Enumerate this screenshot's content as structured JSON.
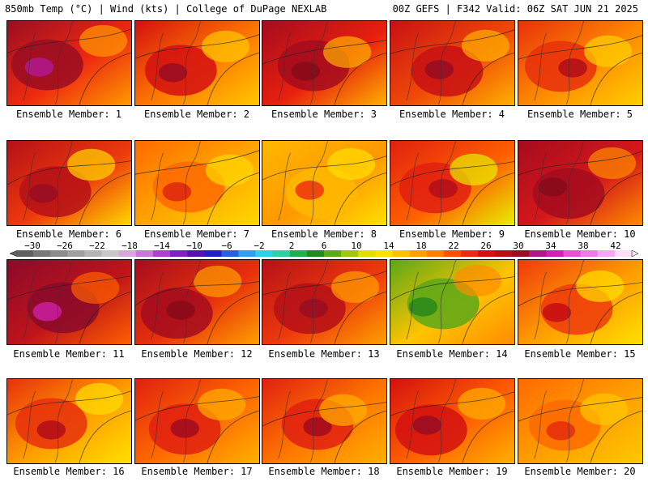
{
  "header": {
    "left": "850mb Temp (°C) | Wind (kts) | College of DuPage NEXLAB",
    "right": "00Z GEFS | F342 Valid: 06Z SAT JUN 21 2025"
  },
  "members": [
    {
      "label": "Ensemble Member: 1",
      "base": "#ee2a10",
      "blob": "#9a0d22",
      "core": "#b0188a",
      "accent": "#ff9a00"
    },
    {
      "label": "Ensemble Member: 2",
      "base": "#ff7a00",
      "blob": "#d41010",
      "core": "#9a0d22",
      "accent": "#ffc800"
    },
    {
      "label": "Ensemble Member: 3",
      "base": "#e8200e",
      "blob": "#a50c1e",
      "core": "#8a0a1a",
      "accent": "#ffb000"
    },
    {
      "label": "Ensemble Member: 4",
      "base": "#f04a08",
      "blob": "#c81014",
      "core": "#9a0d22",
      "accent": "#ffb000"
    },
    {
      "label": "Ensemble Member: 5",
      "base": "#ff8c00",
      "blob": "#e8300c",
      "core": "#b51018",
      "accent": "#ffd000"
    },
    {
      "label": "Ensemble Member: 6",
      "base": "#ee3a0c",
      "blob": "#b51018",
      "core": "#9a0d22",
      "accent": "#ffd800"
    },
    {
      "label": "Ensemble Member: 7",
      "base": "#ffa800",
      "blob": "#ff6a00",
      "core": "#e02a10",
      "accent": "#ffd800"
    },
    {
      "label": "Ensemble Member: 8",
      "base": "#ff9800",
      "blob": "#ffb800",
      "core": "#ee3a0c",
      "accent": "#ffe000"
    },
    {
      "label": "Ensemble Member: 9",
      "base": "#ff6000",
      "blob": "#e02010",
      "core": "#b51018",
      "accent": "#e6f000"
    },
    {
      "label": "Ensemble Member: 10",
      "base": "#d4181a",
      "blob": "#a50c1e",
      "core": "#8a0a1a",
      "accent": "#ff8c00"
    },
    {
      "label": "Ensemble Member: 11",
      "base": "#c0141a",
      "blob": "#8a0a2a",
      "core": "#c81c9a",
      "accent": "#ff6000"
    },
    {
      "label": "Ensemble Member: 12",
      "base": "#e8300c",
      "blob": "#a50c1e",
      "core": "#8a0a1a",
      "accent": "#ffa000"
    },
    {
      "label": "Ensemble Member: 13",
      "base": "#ee3a0c",
      "blob": "#b51018",
      "core": "#9a0d22",
      "accent": "#ffa000"
    },
    {
      "label": "Ensemble Member: 14",
      "base": "#ffc400",
      "blob": "#5aa818",
      "core": "#2e8a1c",
      "accent": "#ff8c00"
    },
    {
      "label": "Ensemble Member: 15",
      "base": "#ffa000",
      "blob": "#ee3a0c",
      "core": "#c81014",
      "accent": "#ffe000"
    },
    {
      "label": "Ensemble Member: 16",
      "base": "#ffa000",
      "blob": "#e8300c",
      "core": "#b51018",
      "accent": "#ffe000"
    },
    {
      "label": "Ensemble Member: 17",
      "base": "#ff6a00",
      "blob": "#e02010",
      "core": "#a50c1e",
      "accent": "#ffb000"
    },
    {
      "label": "Ensemble Member: 18",
      "base": "#ff7800",
      "blob": "#e02010",
      "core": "#a50c1e",
      "accent": "#ffb000"
    },
    {
      "label": "Ensemble Member: 19",
      "base": "#ff6000",
      "blob": "#d41010",
      "core": "#9a0d22",
      "accent": "#ffb000"
    },
    {
      "label": "Ensemble Member: 20",
      "base": "#ffa000",
      "blob": "#ff6a00",
      "core": "#e8300c",
      "accent": "#ffc800"
    }
  ],
  "colorbar": {
    "ticks": [
      "-30",
      "-26",
      "-22",
      "-18",
      "-14",
      "-10",
      "-6",
      "-2",
      "2",
      "6",
      "10",
      "14",
      "18",
      "22",
      "26",
      "30",
      "34",
      "38",
      "42"
    ],
    "min": -32,
    "max": 44,
    "colors": [
      "#606060",
      "#787878",
      "#8c8c8c",
      "#a0a0a0",
      "#b4b4b4",
      "#c8c8c8",
      "#d8a8d8",
      "#c878d8",
      "#b040d0",
      "#8020c0",
      "#5a10b0",
      "#2020c0",
      "#2860e0",
      "#30a0f0",
      "#30d0e8",
      "#30d0a0",
      "#20b050",
      "#208a20",
      "#60a818",
      "#a0c810",
      "#e0e000",
      "#ffe000",
      "#ffc000",
      "#ffa000",
      "#ff8000",
      "#ff5000",
      "#ee2a10",
      "#d41010",
      "#b51018",
      "#9a0d22",
      "#b0188a",
      "#d020b8",
      "#e850d8",
      "#f07ae8",
      "#f8a8f0",
      "#fce0fa"
    ]
  }
}
